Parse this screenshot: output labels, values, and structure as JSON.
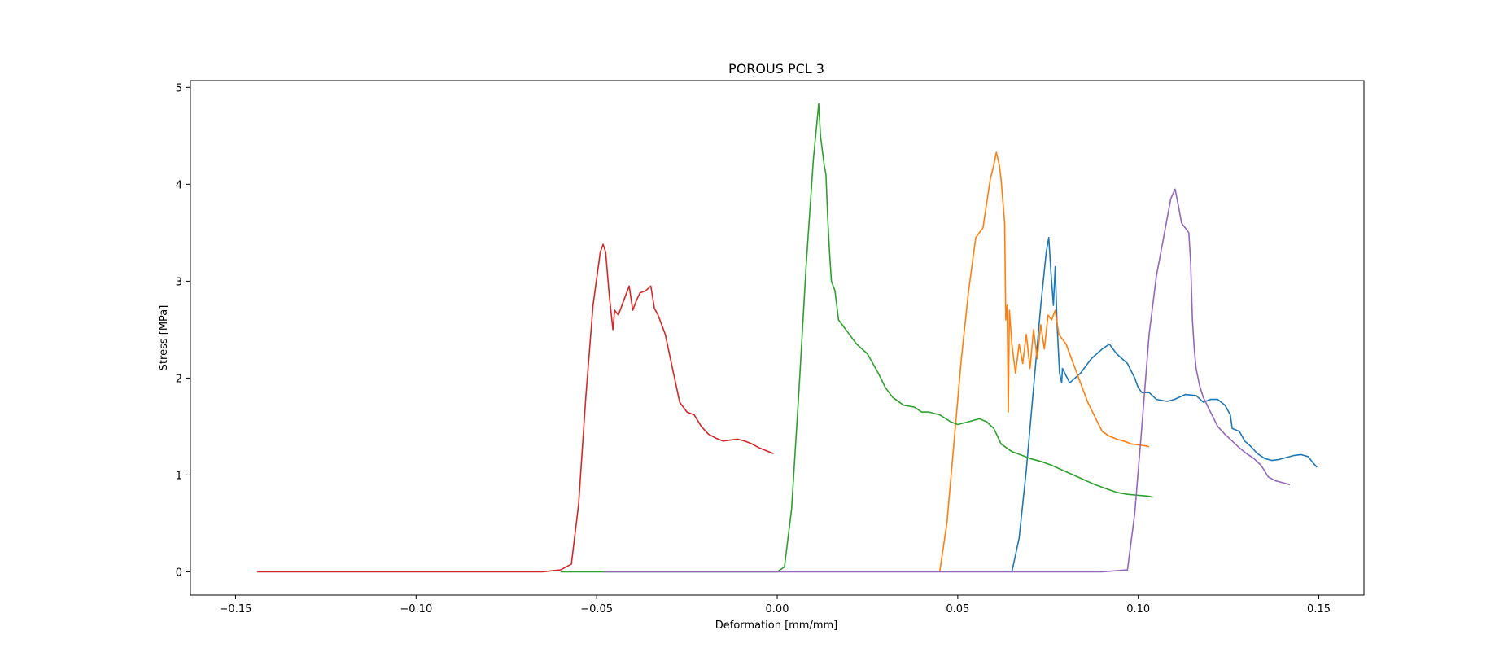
{
  "chart_data": {
    "type": "line",
    "title": "POROUS PCL 3",
    "xlabel": "Deformation [mm/mm]",
    "ylabel": "Stress [MPa]",
    "xlim": [
      -0.1625,
      0.1625
    ],
    "ylim": [
      -0.24,
      5.07
    ],
    "xticks": [
      -0.15,
      -0.1,
      -0.05,
      0.0,
      0.05,
      0.1,
      0.15
    ],
    "xtick_labels": [
      "−0.15",
      "−0.10",
      "−0.05",
      "0.00",
      "0.05",
      "0.10",
      "0.15"
    ],
    "yticks": [
      0,
      1,
      2,
      3,
      4,
      5
    ],
    "ytick_labels": [
      "0",
      "1",
      "2",
      "3",
      "4",
      "5"
    ],
    "grid": false,
    "legend": "none",
    "series": [
      {
        "color": "#1f77b4",
        "x": [
          0.065,
          0.067,
          0.069,
          0.071,
          0.073,
          0.0745,
          0.0752,
          0.0758,
          0.0765,
          0.077,
          0.0775,
          0.0782,
          0.0788,
          0.079,
          0.081,
          0.084,
          0.087,
          0.09,
          0.092,
          0.094,
          0.097,
          0.099,
          0.1,
          0.101,
          0.103,
          0.105,
          0.108,
          0.11,
          0.113,
          0.116,
          0.118,
          0.12,
          0.122,
          0.124,
          0.1255,
          0.126,
          0.128,
          0.1295,
          0.131,
          0.133,
          0.135,
          0.137,
          0.139,
          0.141,
          0.143,
          0.145,
          0.147,
          0.1485,
          0.1495
        ],
        "y": [
          0,
          0.35,
          1.05,
          1.9,
          2.75,
          3.3,
          3.45,
          3.1,
          2.75,
          3.15,
          2.55,
          2.05,
          1.95,
          2.1,
          1.95,
          2.05,
          2.2,
          2.3,
          2.35,
          2.25,
          2.15,
          2.0,
          1.9,
          1.85,
          1.85,
          1.78,
          1.76,
          1.78,
          1.83,
          1.82,
          1.75,
          1.78,
          1.78,
          1.72,
          1.62,
          1.48,
          1.45,
          1.35,
          1.3,
          1.22,
          1.17,
          1.15,
          1.16,
          1.18,
          1.2,
          1.21,
          1.19,
          1.12,
          1.08
        ]
      },
      {
        "color": "#ff7f0e",
        "x": [
          0.045,
          0.047,
          0.049,
          0.051,
          0.053,
          0.055,
          0.057,
          0.058,
          0.059,
          0.06,
          0.0607,
          0.0615,
          0.062,
          0.063,
          0.0633,
          0.0637,
          0.064,
          0.0643,
          0.065,
          0.066,
          0.067,
          0.068,
          0.069,
          0.07,
          0.071,
          0.072,
          0.073,
          0.074,
          0.075,
          0.076,
          0.077,
          0.078,
          0.08,
          0.082,
          0.084,
          0.086,
          0.088,
          0.09,
          0.092,
          0.094,
          0.096,
          0.098,
          0.1,
          0.102,
          0.103
        ],
        "y": [
          0,
          0.5,
          1.35,
          2.2,
          2.9,
          3.45,
          3.55,
          3.8,
          4.05,
          4.2,
          4.33,
          4.2,
          4.05,
          3.6,
          2.6,
          2.75,
          1.65,
          2.7,
          2.35,
          2.05,
          2.35,
          2.15,
          2.45,
          2.1,
          2.5,
          2.2,
          2.55,
          2.3,
          2.65,
          2.6,
          2.7,
          2.45,
          2.35,
          2.15,
          1.95,
          1.75,
          1.6,
          1.45,
          1.4,
          1.37,
          1.35,
          1.32,
          1.31,
          1.3,
          1.29
        ]
      },
      {
        "color": "#2ca02c",
        "x": [
          -0.06,
          -0.05,
          -0.04,
          -0.02,
          0.0,
          0.002,
          0.004,
          0.006,
          0.008,
          0.01,
          0.0115,
          0.012,
          0.013,
          0.0135,
          0.014,
          0.0145,
          0.015,
          0.016,
          0.017,
          0.018,
          0.02,
          0.022,
          0.025,
          0.028,
          0.03,
          0.032,
          0.035,
          0.038,
          0.04,
          0.042,
          0.045,
          0.048,
          0.05,
          0.053,
          0.056,
          0.058,
          0.06,
          0.062,
          0.065,
          0.068,
          0.07,
          0.073,
          0.076,
          0.079,
          0.082,
          0.085,
          0.088,
          0.091,
          0.094,
          0.097,
          0.1,
          0.103,
          0.104
        ],
        "y": [
          0,
          0,
          0,
          0,
          0,
          0.05,
          0.65,
          1.85,
          3.15,
          4.25,
          4.83,
          4.5,
          4.2,
          4.1,
          3.65,
          3.3,
          3.0,
          2.9,
          2.6,
          2.55,
          2.45,
          2.35,
          2.25,
          2.05,
          1.9,
          1.8,
          1.72,
          1.7,
          1.65,
          1.65,
          1.62,
          1.55,
          1.52,
          1.55,
          1.58,
          1.55,
          1.48,
          1.32,
          1.24,
          1.2,
          1.17,
          1.14,
          1.1,
          1.05,
          1.0,
          0.95,
          0.9,
          0.86,
          0.82,
          0.8,
          0.79,
          0.78,
          0.77
        ]
      },
      {
        "color": "#d62728",
        "x": [
          -0.144,
          -0.12,
          -0.1,
          -0.08,
          -0.065,
          -0.06,
          -0.058,
          -0.057,
          -0.055,
          -0.053,
          -0.051,
          -0.049,
          -0.0482,
          -0.0475,
          -0.0465,
          -0.0455,
          -0.045,
          -0.044,
          -0.0425,
          -0.041,
          -0.04,
          -0.039,
          -0.038,
          -0.0365,
          -0.035,
          -0.034,
          -0.033,
          -0.031,
          -0.029,
          -0.027,
          -0.025,
          -0.023,
          -0.021,
          -0.019,
          -0.017,
          -0.015,
          -0.013,
          -0.011,
          -0.009,
          -0.007,
          -0.005,
          -0.003,
          -0.001
        ],
        "y": [
          0,
          0,
          0,
          0,
          0,
          0.02,
          0.06,
          0.08,
          0.7,
          1.8,
          2.75,
          3.3,
          3.38,
          3.3,
          2.85,
          2.5,
          2.7,
          2.65,
          2.8,
          2.95,
          2.7,
          2.8,
          2.88,
          2.9,
          2.95,
          2.72,
          2.65,
          2.45,
          2.1,
          1.75,
          1.65,
          1.62,
          1.5,
          1.42,
          1.38,
          1.35,
          1.36,
          1.37,
          1.35,
          1.32,
          1.28,
          1.25,
          1.22
        ]
      },
      {
        "color": "#9467bd",
        "x": [
          -0.048,
          -0.02,
          0.0,
          0.03,
          0.06,
          0.09,
          0.097,
          0.099,
          0.101,
          0.103,
          0.105,
          0.107,
          0.109,
          0.1102,
          0.111,
          0.112,
          0.113,
          0.114,
          0.1145,
          0.115,
          0.1155,
          0.116,
          0.117,
          0.118,
          0.12,
          0.122,
          0.124,
          0.126,
          0.128,
          0.13,
          0.132,
          0.134,
          0.136,
          0.138,
          0.14,
          0.142
        ],
        "y": [
          0,
          0,
          0,
          0,
          0,
          0,
          0.02,
          0.6,
          1.5,
          2.45,
          3.05,
          3.45,
          3.85,
          3.95,
          3.8,
          3.6,
          3.55,
          3.5,
          3.2,
          2.6,
          2.3,
          2.1,
          1.92,
          1.8,
          1.65,
          1.5,
          1.42,
          1.35,
          1.28,
          1.22,
          1.17,
          1.1,
          0.98,
          0.94,
          0.92,
          0.9
        ]
      }
    ]
  }
}
